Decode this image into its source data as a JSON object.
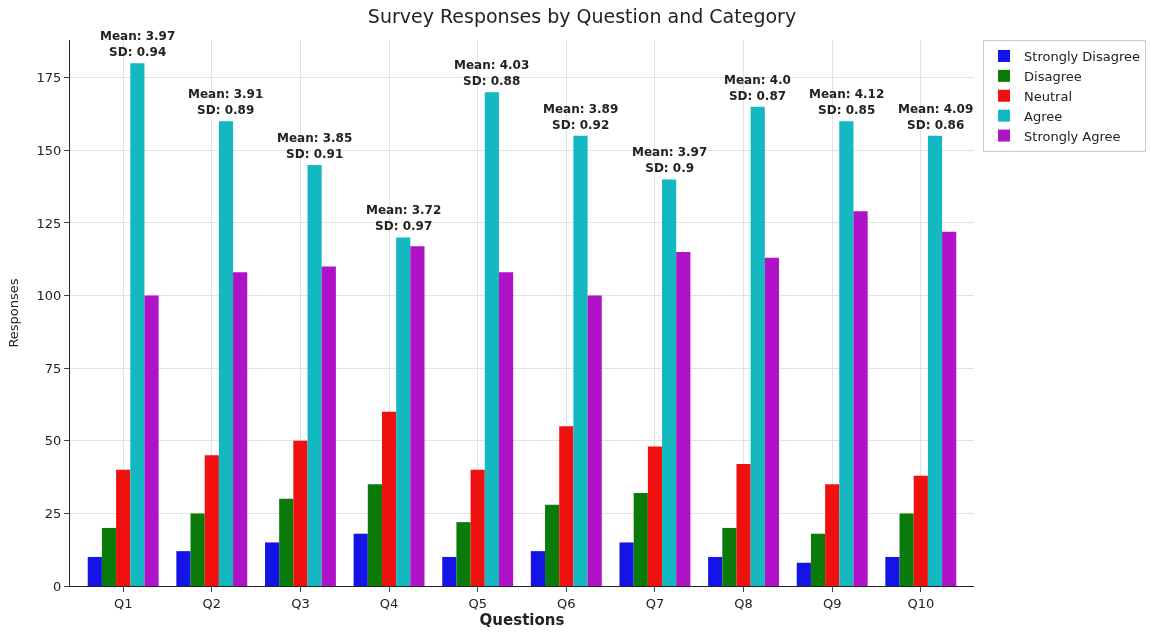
{
  "chart_data": {
    "type": "bar",
    "title": "Survey Responses by Question and Category",
    "xlabel": "Questions",
    "ylabel": "Responses",
    "categories": [
      "Q1",
      "Q2",
      "Q3",
      "Q4",
      "Q5",
      "Q6",
      "Q7",
      "Q8",
      "Q9",
      "Q10"
    ],
    "series": [
      {
        "name": "Strongly Disagree",
        "color": "#1414e6",
        "values": [
          10,
          12,
          15,
          18,
          10,
          12,
          15,
          10,
          8,
          10
        ]
      },
      {
        "name": "Disagree",
        "color": "#0a7a0a",
        "values": [
          20,
          25,
          30,
          35,
          22,
          28,
          32,
          20,
          18,
          25
        ]
      },
      {
        "name": "Neutral",
        "color": "#f01010",
        "values": [
          40,
          45,
          50,
          60,
          40,
          55,
          48,
          42,
          35,
          38
        ]
      },
      {
        "name": "Agree",
        "color": "#14b8c0",
        "values": [
          180,
          160,
          145,
          120,
          170,
          155,
          140,
          165,
          160,
          155
        ]
      },
      {
        "name": "Strongly Agree",
        "color": "#b012c8",
        "values": [
          100,
          108,
          110,
          117,
          108,
          100,
          115,
          113,
          129,
          122
        ]
      }
    ],
    "annotations": [
      "Mean: 3.97\nSD: 0.94",
      "Mean: 3.91\nSD: 0.89",
      "Mean: 3.85\nSD: 0.91",
      "Mean: 3.72\nSD: 0.97",
      "Mean: 4.03\nSD: 0.88",
      "Mean: 3.89\nSD: 0.92",
      "Mean: 3.97\nSD: 0.9",
      "Mean: 4.0\nSD: 0.87",
      "Mean: 4.12\nSD: 0.85",
      "Mean: 4.09\nSD: 0.86"
    ],
    "ylim": [
      0,
      188
    ],
    "yticks": [
      0,
      25,
      50,
      75,
      100,
      125,
      150,
      175
    ],
    "grid": true,
    "legend": "right"
  }
}
